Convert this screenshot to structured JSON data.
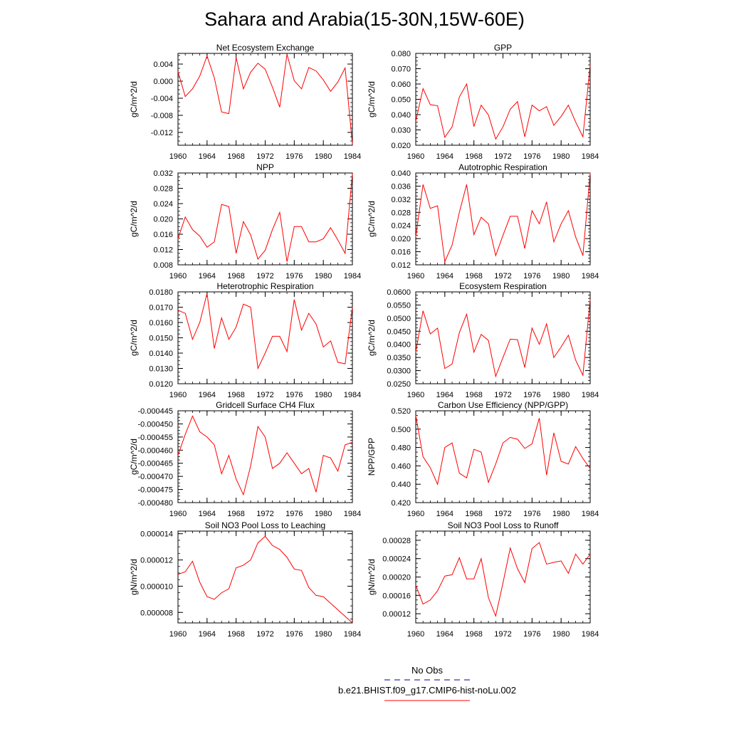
{
  "figure": {
    "title": "Sahara and Arabia(15-30N,15W-60E)",
    "line_color": "#ff0000",
    "obs_color": "#3333aa"
  },
  "legend": {
    "obs_label": "No Obs",
    "model_label": "b.e21.BHIST.f09_g17.CMIP6-hist-noLu.002"
  },
  "chart_data": [
    {
      "type": "line",
      "title": "Net Ecosystem Exchange",
      "ylabel": "gC/m^2/d",
      "xlim": [
        1960,
        1984
      ],
      "ylim": [
        -0.015,
        0.0065
      ],
      "xticks": [
        "1960",
        "1964",
        "1968",
        "1972",
        "1976",
        "1980",
        "1984"
      ],
      "yticks": [
        "0.004",
        "0.000",
        "-0.004",
        "-0.008",
        "-0.012"
      ],
      "x": [
        1960,
        1961,
        1962,
        1963,
        1964,
        1965,
        1966,
        1967,
        1968,
        1969,
        1970,
        1971,
        1972,
        1973,
        1974,
        1975,
        1976,
        1977,
        1978,
        1979,
        1980,
        1981,
        1982,
        1983,
        1984
      ],
      "series": [
        {
          "values": [
            0.0022,
            -0.0036,
            -0.0018,
            0.0012,
            0.0059,
            0.0008,
            -0.0072,
            -0.0076,
            0.0055,
            -0.0018,
            0.0021,
            0.0042,
            0.0028,
            -0.0014,
            -0.0061,
            0.0063,
            0.0001,
            -0.0018,
            0.0032,
            0.0024,
            0.0003,
            -0.0024,
            -0.0002,
            0.0031,
            -0.0148
          ]
        }
      ]
    },
    {
      "type": "line",
      "title": "GPP",
      "ylabel": "gC/m^2/d",
      "xlim": [
        1960,
        1984
      ],
      "ylim": [
        0.02,
        0.08
      ],
      "xticks": [
        "1960",
        "1964",
        "1968",
        "1972",
        "1976",
        "1980",
        "1984"
      ],
      "yticks": [
        "0.080",
        "0.070",
        "0.060",
        "0.050",
        "0.040",
        "0.030",
        "0.020"
      ],
      "x": [
        1960,
        1961,
        1962,
        1963,
        1964,
        1965,
        1966,
        1967,
        1968,
        1969,
        1970,
        1971,
        1972,
        1973,
        1974,
        1975,
        1976,
        1977,
        1978,
        1979,
        1980,
        1981,
        1982,
        1983,
        1984
      ],
      "series": [
        {
          "values": [
            0.0355,
            0.057,
            0.0465,
            0.0458,
            0.0252,
            0.032,
            0.0515,
            0.06,
            0.0322,
            0.0462,
            0.0398,
            0.024,
            0.032,
            0.0435,
            0.0485,
            0.0255,
            0.0462,
            0.0425,
            0.0452,
            0.033,
            0.0388,
            0.0462,
            0.0352,
            0.0255,
            0.0725
          ]
        }
      ]
    },
    {
      "type": "line",
      "title": "NPP",
      "ylabel": "gC/m^2/d",
      "xlim": [
        1960,
        1984
      ],
      "ylim": [
        0.008,
        0.032
      ],
      "xticks": [
        "1960",
        "1964",
        "1968",
        "1972",
        "1976",
        "1980",
        "1984"
      ],
      "yticks": [
        "0.032",
        "0.028",
        "0.024",
        "0.020",
        "0.016",
        "0.012",
        "0.008"
      ],
      "x": [
        1960,
        1961,
        1962,
        1963,
        1964,
        1965,
        1966,
        1967,
        1968,
        1969,
        1970,
        1971,
        1972,
        1973,
        1974,
        1975,
        1976,
        1977,
        1978,
        1979,
        1980,
        1981,
        1982,
        1983,
        1984
      ],
      "series": [
        {
          "values": [
            0.0148,
            0.0205,
            0.0172,
            0.0155,
            0.0126,
            0.014,
            0.0238,
            0.0232,
            0.011,
            0.0193,
            0.0158,
            0.0095,
            0.0118,
            0.0172,
            0.0217,
            0.0088,
            0.018,
            0.018,
            0.014,
            0.014,
            0.0148,
            0.0177,
            0.0145,
            0.011,
            0.0318
          ]
        }
      ]
    },
    {
      "type": "line",
      "title": "Autotrophic Respiration",
      "ylabel": "gC/m^2/d",
      "xlim": [
        1960,
        1984
      ],
      "ylim": [
        0.012,
        0.04
      ],
      "xticks": [
        "1960",
        "1964",
        "1968",
        "1972",
        "1976",
        "1980",
        "1984"
      ],
      "yticks": [
        "0.040",
        "0.036",
        "0.032",
        "0.028",
        "0.024",
        "0.020",
        "0.016",
        "0.012"
      ],
      "x": [
        1960,
        1961,
        1962,
        1963,
        1964,
        1965,
        1966,
        1967,
        1968,
        1969,
        1970,
        1971,
        1972,
        1973,
        1974,
        1975,
        1976,
        1977,
        1978,
        1979,
        1980,
        1981,
        1982,
        1983,
        1984
      ],
      "series": [
        {
          "values": [
            0.0205,
            0.0365,
            0.0292,
            0.03,
            0.013,
            0.018,
            0.028,
            0.0365,
            0.0212,
            0.0265,
            0.0245,
            0.0148,
            0.021,
            0.0268,
            0.0268,
            0.017,
            0.0285,
            0.0245,
            0.0312,
            0.019,
            0.0245,
            0.0285,
            0.0205,
            0.0148,
            0.04
          ]
        }
      ]
    },
    {
      "type": "line",
      "title": "Heterotrophic Respiration",
      "ylabel": "gC/m^2/d",
      "xlim": [
        1960,
        1984
      ],
      "ylim": [
        0.012,
        0.018
      ],
      "xticks": [
        "1960",
        "1964",
        "1968",
        "1972",
        "1976",
        "1980",
        "1984"
      ],
      "yticks": [
        "0.0180",
        "0.0170",
        "0.0160",
        "0.0150",
        "0.0140",
        "0.0130",
        "0.0120"
      ],
      "x": [
        1960,
        1961,
        1962,
        1963,
        1964,
        1965,
        1966,
        1967,
        1968,
        1969,
        1970,
        1971,
        1972,
        1973,
        1974,
        1975,
        1976,
        1977,
        1978,
        1979,
        1980,
        1981,
        1982,
        1983,
        1984
      ],
      "series": [
        {
          "values": [
            0.0168,
            0.0166,
            0.0149,
            0.016,
            0.0179,
            0.0143,
            0.0163,
            0.0149,
            0.0157,
            0.0172,
            0.017,
            0.013,
            0.014,
            0.0151,
            0.0151,
            0.0141,
            0.0175,
            0.0155,
            0.0166,
            0.0159,
            0.0144,
            0.0148,
            0.0134,
            0.0133,
            0.017
          ]
        }
      ]
    },
    {
      "type": "line",
      "title": "Ecosystem Respiration",
      "ylabel": "gC/m^2/d",
      "xlim": [
        1960,
        1984
      ],
      "ylim": [
        0.025,
        0.06
      ],
      "xticks": [
        "1960",
        "1964",
        "1968",
        "1972",
        "1976",
        "1980",
        "1984"
      ],
      "yticks": [
        "0.0600",
        "0.0550",
        "0.0500",
        "0.0450",
        "0.0400",
        "0.0350",
        "0.0300",
        "0.0250"
      ],
      "x": [
        1960,
        1961,
        1962,
        1963,
        1964,
        1965,
        1966,
        1967,
        1968,
        1969,
        1970,
        1971,
        1972,
        1973,
        1974,
        1975,
        1976,
        1977,
        1978,
        1979,
        1980,
        1981,
        1982,
        1983,
        1984
      ],
      "series": [
        {
          "values": [
            0.037,
            0.0528,
            0.044,
            0.0462,
            0.0308,
            0.0325,
            0.0445,
            0.0515,
            0.037,
            0.0438,
            0.0415,
            0.0278,
            0.035,
            0.042,
            0.0418,
            0.0312,
            0.0462,
            0.04,
            0.0478,
            0.035,
            0.039,
            0.0435,
            0.034,
            0.0282,
            0.0572
          ]
        }
      ]
    },
    {
      "type": "line",
      "title": "Gridcell Surface CH4 Flux",
      "ylabel": "gC/m^2/d",
      "xlim": [
        1960,
        1984
      ],
      "ylim": [
        -0.00048,
        -0.000445
      ],
      "xticks": [
        "1960",
        "1964",
        "1968",
        "1972",
        "1976",
        "1980",
        "1984"
      ],
      "yticks": [
        "-0.000445",
        "-0.000450",
        "-0.000455",
        "-0.000460",
        "-0.000465",
        "-0.000470",
        "-0.000475",
        "-0.000480"
      ],
      "x": [
        1960,
        1961,
        1962,
        1963,
        1964,
        1965,
        1966,
        1967,
        1968,
        1969,
        1970,
        1971,
        1972,
        1973,
        1974,
        1975,
        1976,
        1977,
        1978,
        1979,
        1980,
        1981,
        1982,
        1983,
        1984
      ],
      "series": [
        {
          "values": [
            -0.000462,
            -0.000454,
            -0.000447,
            -0.000453,
            -0.000455,
            -0.000458,
            -0.000469,
            -0.000462,
            -0.000471,
            -0.000477,
            -0.000466,
            -0.000451,
            -0.000455,
            -0.000467,
            -0.000465,
            -0.000461,
            -0.000465,
            -0.000469,
            -0.000467,
            -0.000476,
            -0.000462,
            -0.000463,
            -0.000468,
            -0.000458,
            -0.000457
          ]
        }
      ]
    },
    {
      "type": "line",
      "title": "Carbon Use Efficiency (NPP/GPP)",
      "ylabel": "NPP/GPP",
      "xlim": [
        1960,
        1984
      ],
      "ylim": [
        0.42,
        0.52
      ],
      "xticks": [
        "1960",
        "1964",
        "1968",
        "1972",
        "1976",
        "1980",
        "1984"
      ],
      "yticks": [
        "0.520",
        "0.500",
        "0.480",
        "0.460",
        "0.440",
        "0.420"
      ],
      "x": [
        1960,
        1961,
        1962,
        1963,
        1964,
        1965,
        1966,
        1967,
        1968,
        1969,
        1970,
        1971,
        1972,
        1973,
        1974,
        1975,
        1976,
        1977,
        1978,
        1979,
        1980,
        1981,
        1982,
        1983,
        1984
      ],
      "series": [
        {
          "values": [
            0.515,
            0.47,
            0.458,
            0.44,
            0.48,
            0.485,
            0.452,
            0.447,
            0.478,
            0.475,
            0.442,
            0.462,
            0.485,
            0.491,
            0.489,
            0.479,
            0.484,
            0.512,
            0.45,
            0.496,
            0.465,
            0.462,
            0.481,
            0.468,
            0.457
          ]
        }
      ]
    },
    {
      "type": "line",
      "title": "Soil NO3 Pool Loss to Leaching",
      "ylabel": "gN/m^2/d",
      "xlim": [
        1960,
        1984
      ],
      "ylim": [
        7.2e-06,
        1.42e-05
      ],
      "xticks": [
        "1960",
        "1964",
        "1968",
        "1972",
        "1976",
        "1980",
        "1984"
      ],
      "yticks": [
        "0.000014",
        "0.000012",
        "0.000010",
        "0.000008"
      ],
      "x": [
        1960,
        1961,
        1962,
        1963,
        1964,
        1965,
        1966,
        1967,
        1968,
        1969,
        1970,
        1971,
        1972,
        1973,
        1974,
        1975,
        1976,
        1977,
        1978,
        1979,
        1980,
        1981,
        1982,
        1983,
        1984
      ],
      "series": [
        {
          "values": [
            1.09e-05,
            1.11e-05,
            1.19e-05,
            1.03e-05,
            9.2e-06,
            9e-06,
            9.5e-06,
            9.8e-06,
            1.14e-05,
            1.16e-05,
            1.2e-05,
            1.33e-05,
            1.38e-05,
            1.31e-05,
            1.28e-05,
            1.22e-05,
            1.13e-05,
            1.12e-05,
            9.9e-06,
            9.3e-06,
            9.2e-06,
            8.7e-06,
            8.2e-06,
            7.7e-06,
            7.2e-06
          ]
        }
      ]
    },
    {
      "type": "line",
      "title": "Soil NO3 Pool Loss to Runoff",
      "ylabel": "gN/m^2/d",
      "xlim": [
        1960,
        1984
      ],
      "ylim": [
        0.0001,
        0.0003
      ],
      "xticks": [
        "1960",
        "1964",
        "1968",
        "1972",
        "1976",
        "1980",
        "1984"
      ],
      "yticks": [
        "0.00028",
        "0.00024",
        "0.00020",
        "0.00016",
        "0.00012"
      ],
      "x": [
        1960,
        1961,
        1962,
        1963,
        1964,
        1965,
        1966,
        1967,
        1968,
        1969,
        1970,
        1971,
        1972,
        1973,
        1974,
        1975,
        1976,
        1977,
        1978,
        1979,
        1980,
        1981,
        1982,
        1983,
        1984
      ],
      "series": [
        {
          "values": [
            0.000182,
            0.000141,
            0.00015,
            0.00017,
            0.000202,
            0.000205,
            0.000242,
            0.000196,
            0.000196,
            0.00024,
            0.000155,
            0.000115,
            0.000187,
            0.000263,
            0.000218,
            0.000188,
            0.000262,
            0.000275,
            0.000228,
            0.000232,
            0.000235,
            0.000208,
            0.00025,
            0.000228,
            0.00025
          ]
        }
      ]
    }
  ]
}
